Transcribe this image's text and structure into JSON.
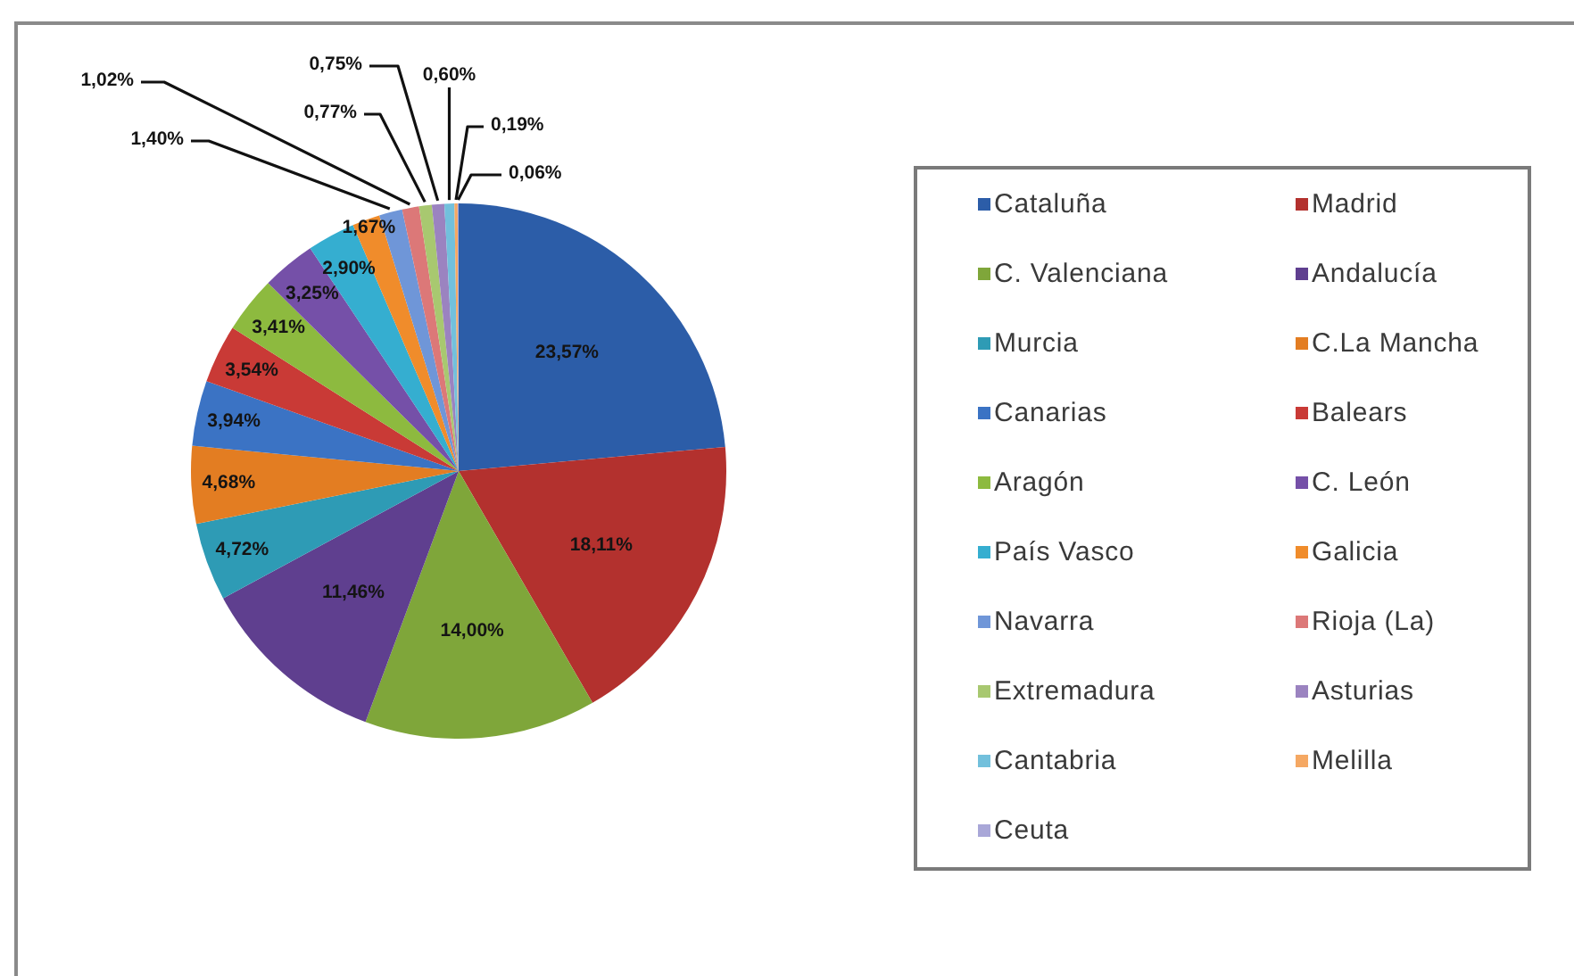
{
  "chart_data": {
    "type": "pie",
    "categories": [
      "Cataluña",
      "Madrid",
      "C. Valenciana",
      "Andalucía",
      "Murcia",
      "C.La Mancha",
      "Canarias",
      "Balears",
      "Aragón",
      "C. León",
      "País Vasco",
      "Galicia",
      "Navarra",
      "Rioja (La)",
      "Extremadura",
      "Asturias",
      "Cantabria",
      "Melilla",
      "Ceuta"
    ],
    "values": [
      23.57,
      18.11,
      14.0,
      11.46,
      4.72,
      4.68,
      3.94,
      3.54,
      3.41,
      3.25,
      2.9,
      1.67,
      1.4,
      1.02,
      0.77,
      0.75,
      0.6,
      0.19,
      0.06
    ],
    "colors": [
      "#2c5da8",
      "#b3312e",
      "#7fa63a",
      "#5f3f8f",
      "#2e9bb5",
      "#e37d22",
      "#3b73c4",
      "#c93a36",
      "#8dba3f",
      "#7550a8",
      "#35aed0",
      "#f08c2b",
      "#6f96d8",
      "#dc7878",
      "#a8c870",
      "#9b83c0",
      "#72c0dc",
      "#f5a863",
      "#a9a7d8"
    ],
    "value_labels": [
      "23,57%",
      "18,11%",
      "14,00%",
      "11,46%",
      "4,72%",
      "4,68%",
      "3,94%",
      "3,54%",
      "3,41%",
      "3,25%",
      "2,90%",
      "1,67%",
      "1,40%",
      "1,02%",
      "0,77%",
      "0,75%",
      "0,60%",
      "0,19%",
      "0,06%"
    ],
    "legend": "right"
  }
}
